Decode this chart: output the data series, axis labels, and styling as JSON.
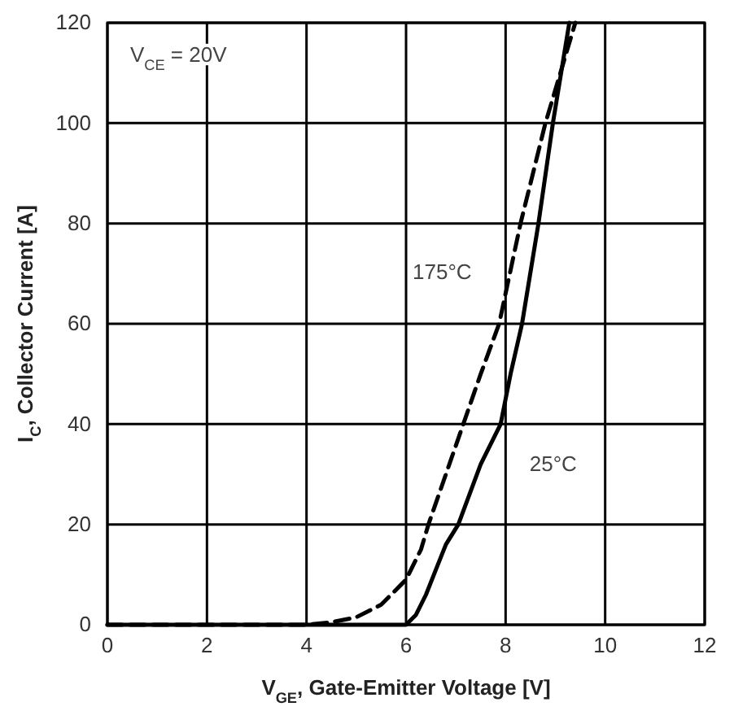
{
  "chart_data": {
    "type": "line",
    "xlabel": "V$_{GE}$, Gate-Emitter Voltage [V]",
    "ylabel": "I$_{C}$, Collector Current [A]",
    "annotations": [
      "V$_{CE}$ = 20V"
    ],
    "xlim": [
      0,
      12
    ],
    "xticks": [
      0,
      2,
      4,
      6,
      8,
      10,
      12
    ],
    "ylim": [
      0,
      120
    ],
    "yticks": [
      0,
      20,
      40,
      60,
      80,
      100,
      120
    ],
    "grid": true,
    "legend": false,
    "marker": "none",
    "series": [
      {
        "name": "175°C",
        "color": "#000000",
        "line_style": "dashed",
        "x": [
          0,
          4,
          4.5,
          5,
          5.5,
          6,
          6.3,
          6.45,
          6.8,
          7.15,
          7.5,
          7.87,
          8.3,
          8.8,
          9.4
        ],
        "values": [
          0,
          0,
          0.5,
          1.5,
          4,
          9,
          15,
          20,
          30,
          40,
          50,
          60,
          80,
          100,
          120
        ]
      },
      {
        "name": "25°C",
        "color": "#000000",
        "line_style": "solid",
        "x": [
          0,
          6,
          6.2,
          6.4,
          6.6,
          6.8,
          7.05,
          7.5,
          7.9,
          8.1,
          8.33,
          8.66,
          8.95,
          9.28
        ],
        "values": [
          0,
          0,
          2,
          6,
          11,
          16,
          20,
          32,
          40,
          50,
          60,
          80,
          100,
          120
        ]
      }
    ]
  }
}
